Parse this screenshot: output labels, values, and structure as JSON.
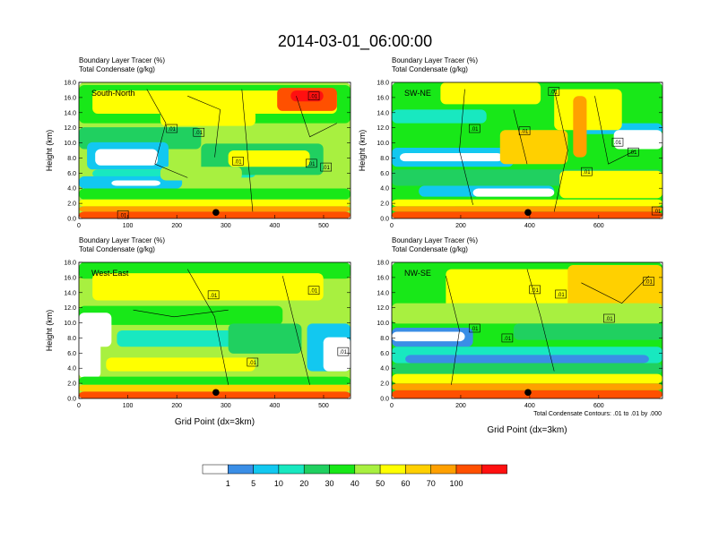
{
  "figure": {
    "title": "2014-03-01_06:00:00",
    "x_axis_label": "Grid Point (dx=3km)",
    "contour_note": "Total Condensate Contours: .01 to .01 by .000"
  },
  "colorbar": {
    "colors": [
      "#ffffff",
      "#3a8ee6",
      "#12c8f0",
      "#18e8c0",
      "#20d060",
      "#18e818",
      "#a8f040",
      "#ffff00",
      "#ffd000",
      "#ffa000",
      "#ff5000",
      "#ff1010"
    ],
    "labels": [
      "1",
      "5",
      "10",
      "20",
      "30",
      "40",
      "50",
      "60",
      "70",
      "100"
    ]
  },
  "contour_label": ".01",
  "chart_data": [
    {
      "type": "heatmap",
      "panel": "South-North",
      "title_line1": "Boundary Layer Tracer   (%)",
      "title_line2": "Total Condensate   (g/kg)",
      "xlabel": "",
      "ylabel": "Height (km)",
      "xlim": [
        0,
        555
      ],
      "ylim": [
        0,
        18
      ],
      "xticks": [
        0,
        100,
        200,
        300,
        400,
        500
      ],
      "yticks": [
        "0.0",
        "2.0",
        "4.0",
        "6.0",
        "8.0",
        "10.0",
        "12.0",
        "14.0",
        "16.0",
        "18.0"
      ],
      "marker": {
        "x": 280,
        "y": 0.8
      },
      "contour_label_positions": [
        [
          480,
          16.2
        ],
        [
          190,
          11.9
        ],
        [
          245,
          11.4
        ],
        [
          325,
          7.6
        ],
        [
          475,
          7.3
        ],
        [
          505,
          6.8
        ],
        [
          90,
          0.5
        ]
      ]
    },
    {
      "type": "heatmap",
      "panel": "SW-NE",
      "title_line1": "Boundary Layer Tracer   (%)",
      "title_line2": "Total Condensate   (g/kg)",
      "xlabel": "",
      "ylabel": "Height (km)",
      "xlim": [
        0,
        785
      ],
      "ylim": [
        0,
        18
      ],
      "xticks": [
        0,
        200,
        400,
        600
      ],
      "yticks": [
        "0.0",
        "2.0",
        "4.0",
        "6.0",
        "8.0",
        "10.0",
        "12.0",
        "14.0",
        "16.0",
        "18.0"
      ],
      "marker": {
        "x": 395,
        "y": 0.8
      },
      "contour_label_positions": [
        [
          470,
          16.8
        ],
        [
          240,
          11.9
        ],
        [
          385,
          11.6
        ],
        [
          655,
          10.1
        ],
        [
          700,
          8.8
        ],
        [
          565,
          6.2
        ],
        [
          770,
          1.0
        ]
      ]
    },
    {
      "type": "heatmap",
      "panel": "West-East",
      "title_line1": "Boundary Layer Tracer   (%)",
      "title_line2": "Total Condensate   (g/kg)",
      "xlabel": "Grid Point (dx=3km)",
      "ylabel": "Height (km)",
      "xlim": [
        0,
        555
      ],
      "ylim": [
        0,
        18
      ],
      "xticks": [
        0,
        100,
        200,
        300,
        400,
        500
      ],
      "yticks": [
        "0.0",
        "2.0",
        "4.0",
        "6.0",
        "8.0",
        "10.0",
        "12.0",
        "14.0",
        "16.0",
        "18.0"
      ],
      "marker": {
        "x": 280,
        "y": 0.8
      },
      "contour_label_positions": [
        [
          275,
          13.7
        ],
        [
          480,
          14.3
        ],
        [
          355,
          4.8
        ],
        [
          540,
          6.2
        ]
      ]
    },
    {
      "type": "heatmap",
      "panel": "NW-SE",
      "title_line1": "Boundary Layer Tracer   (%)",
      "title_line2": "Total Condensate   (g/kg)",
      "xlabel": "Grid Point (dx=3km)",
      "ylabel": "",
      "xlim": [
        0,
        785
      ],
      "ylim": [
        0,
        18
      ],
      "xticks": [
        0,
        200,
        400,
        600
      ],
      "yticks": [
        "0.0",
        "2.0",
        "4.0",
        "6.0",
        "8.0",
        "10.0",
        "12.0",
        "14.0",
        "16.0",
        "18.0"
      ],
      "marker": {
        "x": 395,
        "y": 0.8
      },
      "contour_label_positions": [
        [
          415,
          14.4
        ],
        [
          490,
          13.8
        ],
        [
          745,
          15.5
        ],
        [
          630,
          10.6
        ],
        [
          240,
          9.3
        ],
        [
          335,
          8.0
        ]
      ]
    }
  ]
}
